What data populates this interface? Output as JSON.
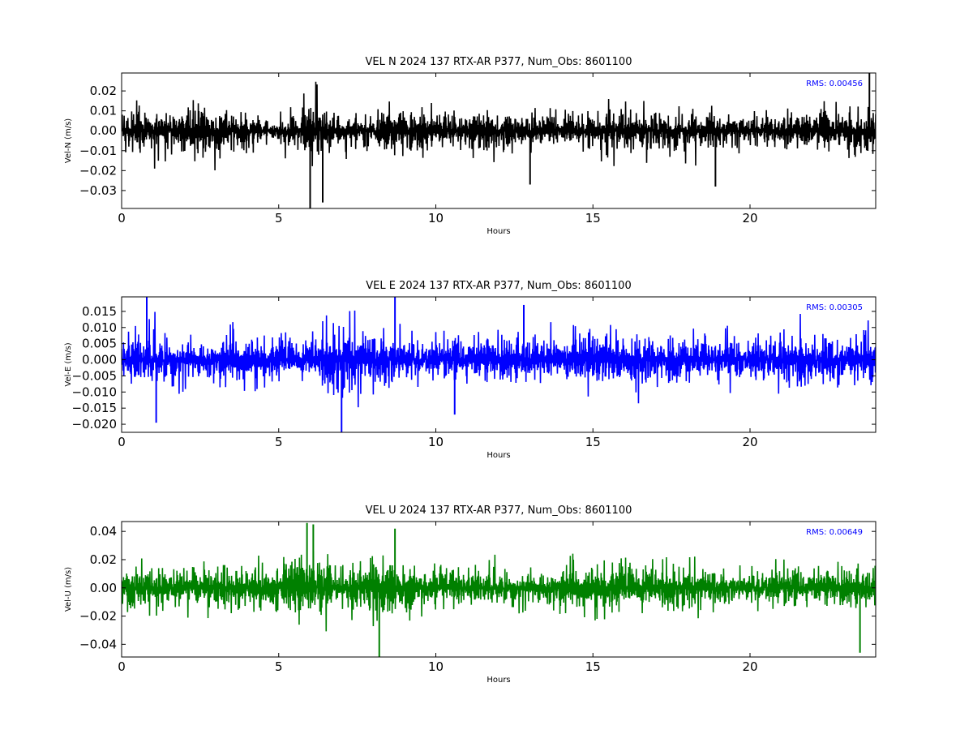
{
  "chart_data": [
    {
      "type": "line",
      "title": "VEL N 2024 137 RTX-AR  P377, Num_Obs: 8601100",
      "xlabel": "Hours",
      "ylabel": "Vel-N (m/s)",
      "xlim": [
        0,
        24
      ],
      "ylim": [
        -0.039,
        0.029
      ],
      "xticks": [
        0,
        5,
        10,
        15,
        20
      ],
      "xtick_labels": [
        "0",
        "5",
        "10",
        "15",
        "20"
      ],
      "yticks": [
        -0.03,
        -0.02,
        -0.01,
        0.0,
        0.01,
        0.02
      ],
      "ytick_labels": [
        "−0.03",
        "−0.02",
        "−0.01",
        "0.00",
        "0.01",
        "0.02"
      ],
      "color": "#000000",
      "rms_text": "RMS:  0.00456",
      "rms_value": 0.00456,
      "envelope": {
        "hours": [
          0,
          0.5,
          1,
          1.5,
          2,
          2.5,
          3,
          3.5,
          4,
          4.5,
          5,
          5.5,
          5.8,
          6.0,
          6.2,
          6.5,
          7,
          7.5,
          8,
          8.5,
          9,
          9.5,
          10,
          10.5,
          11,
          11.5,
          12,
          12.5,
          13,
          13.5,
          14,
          14.5,
          15,
          15.5,
          16,
          16.5,
          17,
          17.5,
          18,
          18.5,
          19,
          19.5,
          20,
          20.5,
          21,
          21.5,
          22,
          22.5,
          23,
          23.5,
          24
        ],
        "amplitude": [
          0.014,
          0.015,
          0.014,
          0.013,
          0.017,
          0.018,
          0.018,
          0.014,
          0.01,
          0.009,
          0.009,
          0.011,
          0.018,
          0.024,
          0.02,
          0.013,
          0.01,
          0.01,
          0.012,
          0.015,
          0.016,
          0.016,
          0.013,
          0.012,
          0.013,
          0.014,
          0.013,
          0.012,
          0.012,
          0.011,
          0.01,
          0.01,
          0.013,
          0.014,
          0.013,
          0.012,
          0.012,
          0.012,
          0.013,
          0.014,
          0.013,
          0.012,
          0.01,
          0.011,
          0.012,
          0.013,
          0.013,
          0.013,
          0.014,
          0.015,
          0.015
        ]
      },
      "spikes": [
        {
          "x": 6.0,
          "y": -0.039
        },
        {
          "x": 6.4,
          "y": -0.036
        },
        {
          "x": 13.0,
          "y": -0.027
        },
        {
          "x": 18.9,
          "y": -0.028
        },
        {
          "x": 23.8,
          "y": 0.029
        }
      ]
    },
    {
      "type": "line",
      "title": "VEL E 2024 137 RTX-AR  P377, Num_Obs: 8601100",
      "xlabel": "Hours",
      "ylabel": "Vel-E (m/s)",
      "xlim": [
        0,
        24
      ],
      "ylim": [
        -0.0225,
        0.0195
      ],
      "xticks": [
        0,
        5,
        10,
        15,
        20
      ],
      "xtick_labels": [
        "0",
        "5",
        "10",
        "15",
        "20"
      ],
      "yticks": [
        -0.02,
        -0.015,
        -0.01,
        -0.005,
        0.0,
        0.005,
        0.01,
        0.015
      ],
      "ytick_labels": [
        "−0.020",
        "−0.015",
        "−0.010",
        "−0.005",
        "0.000",
        "0.005",
        "0.010",
        "0.015"
      ],
      "color": "#0000ff",
      "rms_text": "RMS:  0.00305",
      "rms_value": 0.00305,
      "envelope": {
        "hours": [
          0,
          0.5,
          1,
          1.5,
          2,
          2.5,
          3,
          3.5,
          4,
          4.5,
          5,
          5.5,
          6,
          6.5,
          7,
          7.5,
          8,
          8.5,
          9,
          9.5,
          10,
          10.5,
          11,
          11.5,
          12,
          12.5,
          13,
          13.5,
          14,
          14.5,
          15,
          15.5,
          16,
          16.5,
          17,
          17.5,
          18,
          18.5,
          19,
          19.5,
          20,
          20.5,
          21,
          21.5,
          22,
          22.5,
          23,
          23.5,
          24
        ],
        "amplitude": [
          0.011,
          0.012,
          0.011,
          0.01,
          0.009,
          0.008,
          0.008,
          0.009,
          0.009,
          0.008,
          0.008,
          0.008,
          0.008,
          0.013,
          0.015,
          0.014,
          0.012,
          0.014,
          0.012,
          0.009,
          0.008,
          0.009,
          0.01,
          0.01,
          0.009,
          0.009,
          0.009,
          0.009,
          0.01,
          0.012,
          0.013,
          0.011,
          0.009,
          0.01,
          0.012,
          0.012,
          0.009,
          0.009,
          0.009,
          0.009,
          0.008,
          0.009,
          0.011,
          0.012,
          0.011,
          0.01,
          0.009,
          0.009,
          0.01
        ]
      },
      "spikes": [
        {
          "x": 0.8,
          "y": 0.0195
        },
        {
          "x": 1.1,
          "y": -0.0195
        },
        {
          "x": 7.0,
          "y": -0.0225
        },
        {
          "x": 8.7,
          "y": 0.0195
        },
        {
          "x": 10.6,
          "y": -0.017
        },
        {
          "x": 12.8,
          "y": 0.017
        }
      ]
    },
    {
      "type": "line",
      "title": "VEL U 2024 137 RTX-AR  P377, Num_Obs: 8601100",
      "xlabel": "Hours",
      "ylabel": "Vel-U (m/s)",
      "xlim": [
        0,
        24
      ],
      "ylim": [
        -0.049,
        0.047
      ],
      "xticks": [
        0,
        5,
        10,
        15,
        20
      ],
      "xtick_labels": [
        "0",
        "5",
        "10",
        "15",
        "20"
      ],
      "yticks": [
        -0.04,
        -0.02,
        0.0,
        0.02,
        0.04
      ],
      "ytick_labels": [
        "−0.04",
        "−0.02",
        "0.00",
        "0.02",
        "0.04"
      ],
      "color": "#008000",
      "rms_text": "RMS:  0.00649",
      "rms_value": 0.00649,
      "envelope": {
        "hours": [
          0,
          0.5,
          1,
          1.5,
          2,
          2.5,
          3,
          3.5,
          4,
          4.5,
          5,
          5.5,
          5.8,
          6.0,
          6.3,
          6.7,
          7,
          7.5,
          8,
          8.3,
          8.7,
          9,
          9.5,
          10,
          10.5,
          11,
          11.5,
          12,
          12.5,
          13,
          13.5,
          14,
          14.5,
          15,
          15.5,
          16,
          16.5,
          17,
          17.5,
          18,
          18.5,
          19,
          19.5,
          20,
          20.5,
          21,
          21.5,
          22,
          22.5,
          23,
          23.5,
          24
        ],
        "amplitude": [
          0.02,
          0.021,
          0.02,
          0.02,
          0.021,
          0.021,
          0.02,
          0.022,
          0.022,
          0.021,
          0.022,
          0.026,
          0.034,
          0.035,
          0.03,
          0.022,
          0.021,
          0.026,
          0.03,
          0.034,
          0.028,
          0.021,
          0.019,
          0.018,
          0.019,
          0.019,
          0.018,
          0.017,
          0.016,
          0.016,
          0.017,
          0.018,
          0.019,
          0.02,
          0.021,
          0.02,
          0.022,
          0.02,
          0.021,
          0.021,
          0.02,
          0.019,
          0.018,
          0.018,
          0.019,
          0.019,
          0.019,
          0.018,
          0.018,
          0.018,
          0.018,
          0.018
        ]
      },
      "spikes": [
        {
          "x": 5.9,
          "y": 0.046
        },
        {
          "x": 6.1,
          "y": 0.045
        },
        {
          "x": 8.2,
          "y": -0.049
        },
        {
          "x": 8.7,
          "y": 0.042
        },
        {
          "x": 23.5,
          "y": -0.046
        }
      ]
    }
  ]
}
